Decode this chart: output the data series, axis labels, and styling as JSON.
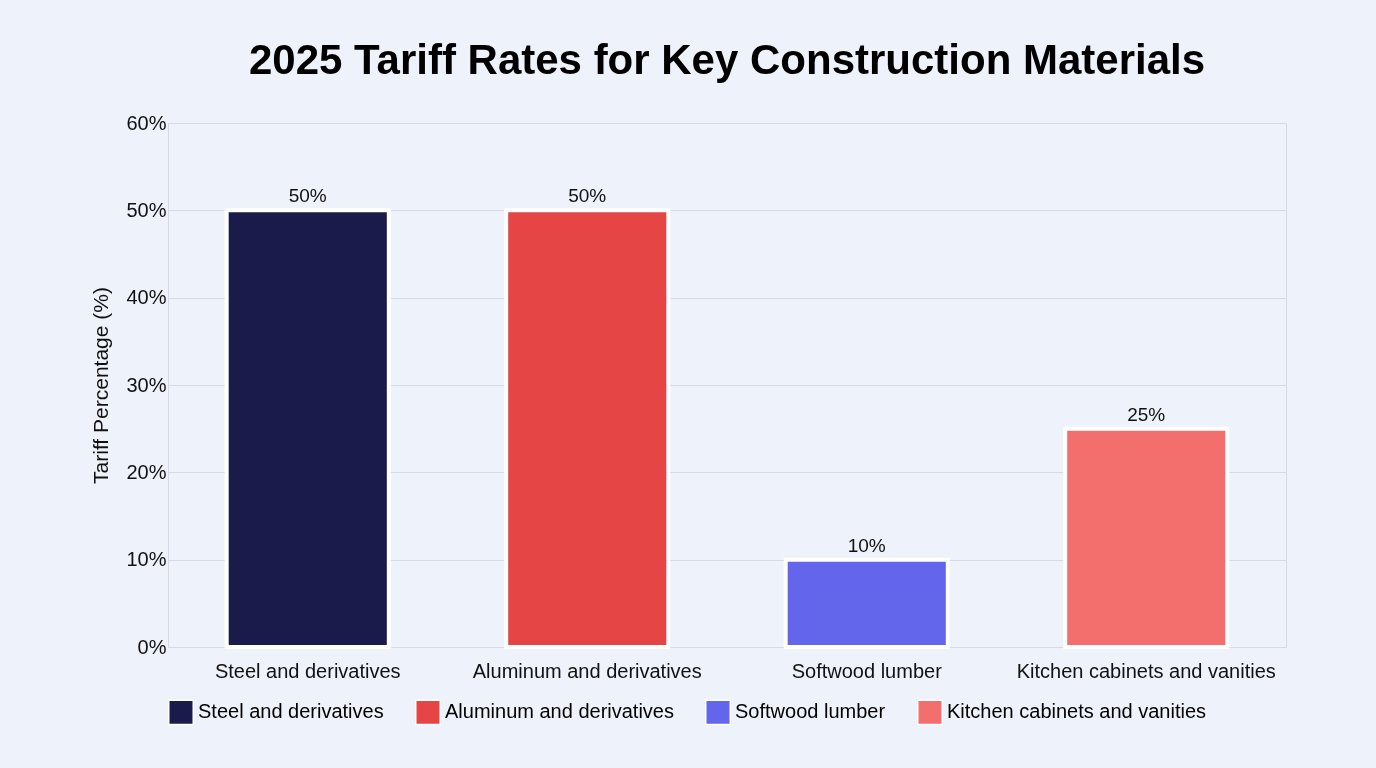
{
  "chart_data": {
    "type": "bar",
    "title": "2025 Tariff Rates for Key Construction Materials",
    "ylabel": "Tariff Percentage (%)",
    "categories": [
      "Steel and derivatives",
      "Aluminum and derivatives",
      "Softwood lumber",
      "Kitchen cabinets and vanities"
    ],
    "stacked": true,
    "series": [
      {
        "name": "Steel and derivatives",
        "color": "#1a1b4b",
        "values": [
          50,
          null,
          null,
          null
        ],
        "value_labels": [
          "50%",
          null,
          null,
          null
        ]
      },
      {
        "name": "Aluminum and derivatives",
        "color": "#e54545",
        "values": [
          null,
          50,
          null,
          null
        ],
        "value_labels": [
          null,
          "50%",
          null,
          null
        ]
      },
      {
        "name": "Softwood lumber",
        "color": "#6366ea",
        "values": [
          null,
          null,
          10,
          null
        ],
        "value_labels": [
          null,
          null,
          "10%",
          null
        ]
      },
      {
        "name": "Kitchen cabinets and vanities",
        "color": "#f26f6d",
        "values": [
          null,
          null,
          null,
          25
        ],
        "value_labels": [
          null,
          null,
          null,
          "25%"
        ]
      }
    ],
    "ylim": [
      0,
      60
    ],
    "yticks": [
      {
        "value": 0,
        "label": "0%"
      },
      {
        "value": 10,
        "label": "10%"
      },
      {
        "value": 20,
        "label": "20%"
      },
      {
        "value": 30,
        "label": "30%"
      },
      {
        "value": 40,
        "label": "40%"
      },
      {
        "value": 50,
        "label": "50%"
      },
      {
        "value": 60,
        "label": "60%"
      }
    ],
    "grid": "y",
    "legend": "bottom"
  }
}
